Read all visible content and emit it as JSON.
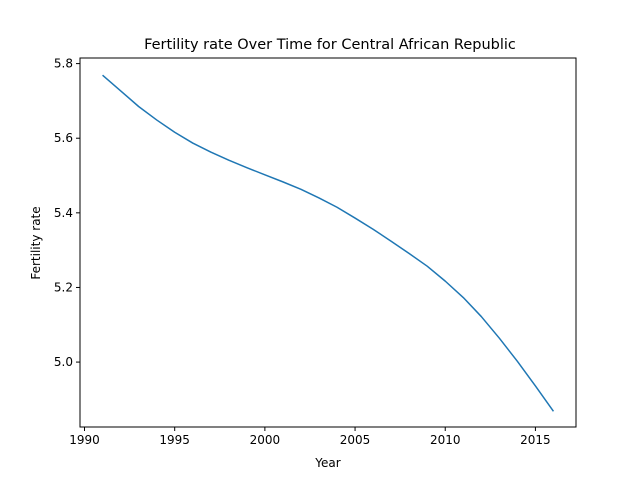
{
  "chart_data": {
    "type": "line",
    "title": "Fertility rate Over Time for Central African Republic",
    "xlabel": "Year",
    "ylabel": "Fertility rate",
    "xlim": [
      1989.75,
      2017.25
    ],
    "ylim": [
      4.826,
      5.815
    ],
    "xticks": [
      1990,
      1995,
      2000,
      2005,
      2010,
      2015
    ],
    "yticks": [
      5.0,
      5.2,
      5.4,
      5.6,
      5.8
    ],
    "grid": false,
    "legend": "none",
    "series": [
      {
        "color": "#1f77b4",
        "x": [
          1991,
          1992,
          1993,
          1994,
          1995,
          1996,
          1997,
          1998,
          1999,
          2000,
          2001,
          2002,
          2003,
          2004,
          2005,
          2006,
          2007,
          2008,
          2009,
          2010,
          2011,
          2012,
          2013,
          2014,
          2015,
          2016
        ],
        "y": [
          5.769,
          5.727,
          5.685,
          5.649,
          5.616,
          5.587,
          5.563,
          5.541,
          5.521,
          5.502,
          5.483,
          5.463,
          5.44,
          5.415,
          5.386,
          5.356,
          5.324,
          5.291,
          5.257,
          5.217,
          5.173,
          5.122,
          5.064,
          5.002,
          4.936,
          4.868
        ]
      }
    ]
  }
}
